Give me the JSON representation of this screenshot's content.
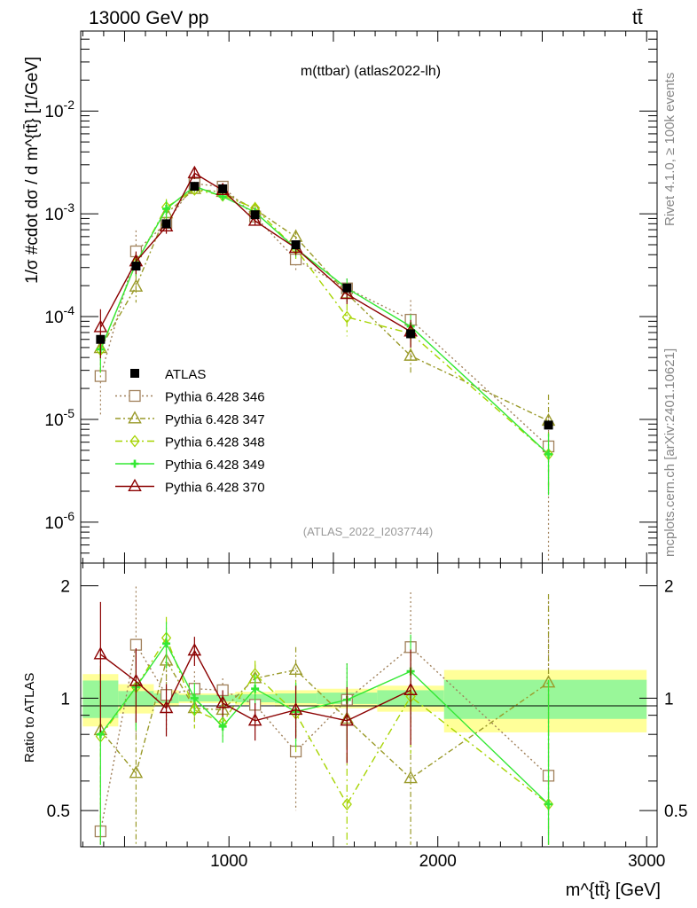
{
  "header": {
    "energy_label": "13000 GeV pp",
    "process_label": "tt̄",
    "side_rivet": "Rivet 4.1.0, ≥ 100k events",
    "side_mcplots": "mcplots.cern.ch [arXiv:2401.10621]"
  },
  "chart_data": {
    "type": "line",
    "title": "m(ttbar) (atlas2022-lh)",
    "analysis_id": "(ATLAS_2022_I2037744)",
    "xlabel": "m^{tt̄} [GeV]",
    "ylabel": "1/σ #cdot dσ / d m^{tt̄} [1/GeV]",
    "ratio_ylabel": "Ratio to ATLAS",
    "xlim": [
      290,
      3050
    ],
    "ylim": [
      4e-07,
      0.06
    ],
    "ratio_ylim": [
      0.4,
      2.3
    ],
    "x_ticks": [
      1000,
      2000,
      3000
    ],
    "y_ticks": [
      {
        "value": 1e-06,
        "label": "10^{-6}"
      },
      {
        "value": 1e-05,
        "label": "10^{-5}"
      },
      {
        "value": 0.0001,
        "label": "10^{-4}"
      },
      {
        "value": 0.001,
        "label": "10^{-3}"
      },
      {
        "value": 0.01,
        "label": "10^{-2}"
      }
    ],
    "ratio_ticks": [
      {
        "value": 0.5,
        "label": "0.5"
      },
      {
        "value": 1,
        "label": "1"
      },
      {
        "value": 2,
        "label": "2"
      }
    ],
    "data": {
      "name": "ATLAS",
      "x": [
        385,
        555,
        700,
        835,
        970,
        1125,
        1320,
        1565,
        1870,
        2530
      ],
      "x_edges": [
        [
          300,
          470
        ],
        [
          470,
          640
        ],
        [
          640,
          760
        ],
        [
          760,
          910
        ],
        [
          910,
          1030
        ],
        [
          1030,
          1220
        ],
        [
          1220,
          1420
        ],
        [
          1420,
          1710
        ],
        [
          1710,
          2030
        ],
        [
          2030,
          3000
        ]
      ],
      "y": [
        6e-05,
        0.00031,
        0.0008,
        0.00185,
        0.00175,
        0.00098,
        0.0005,
        0.00019,
        6.8e-05,
        8.8e-06
      ],
      "band_inner": [
        0.115,
        0.045,
        0.03,
        0.02,
        0.02,
        0.025,
        0.03,
        0.035,
        0.05,
        0.12
      ],
      "band_outer": [
        0.16,
        0.09,
        0.05,
        0.03,
        0.03,
        0.04,
        0.05,
        0.06,
        0.08,
        0.19
      ]
    },
    "series": [
      {
        "name": "Pythia 6.428 346",
        "color": "#a0805a",
        "dash": "2,3",
        "marker": "square",
        "ratio": [
          0.44,
          1.39,
          1.02,
          1.06,
          1.05,
          0.96,
          0.72,
          0.99,
          1.37,
          0.62
        ],
        "ratio_err": [
          0.6,
          0.6,
          0.2,
          0.12,
          0.08,
          0.12,
          0.22,
          0.25,
          0.55,
          1.2
        ]
      },
      {
        "name": "Pythia 6.428 347",
        "color": "#9a9a2a",
        "dash": "6,3,2,3",
        "marker": "triangle",
        "ratio": [
          0.82,
          0.63,
          1.26,
          0.94,
          0.93,
          1.13,
          1.19,
          0.88,
          0.61,
          1.1
        ],
        "ratio_err": [
          0.5,
          0.3,
          0.2,
          0.1,
          0.08,
          0.1,
          0.18,
          0.22,
          0.35,
          0.8
        ]
      },
      {
        "name": "Pythia 6.428 348",
        "color": "#a6d400",
        "dash": "8,4,2,4",
        "marker": "diamond",
        "ratio": [
          0.79,
          1.07,
          1.45,
          0.93,
          0.86,
          1.16,
          0.91,
          0.52,
          1.01,
          0.52
        ],
        "ratio_err": [
          0.4,
          0.25,
          0.2,
          0.1,
          0.08,
          0.1,
          0.2,
          0.35,
          0.3,
          0.6
        ]
      },
      {
        "name": "Pythia 6.428 349",
        "color": "#34e834",
        "dash": "",
        "marker": "cross",
        "ratio": [
          0.8,
          1.07,
          1.4,
          1.0,
          0.84,
          1.06,
          0.92,
          0.99,
          1.18,
          0.52
        ],
        "ratio_err": [
          0.4,
          0.25,
          0.2,
          0.1,
          0.08,
          0.1,
          0.18,
          0.25,
          0.3,
          0.6
        ]
      },
      {
        "name": "Pythia 6.428 370",
        "color": "#8b0000",
        "dash": "",
        "marker": "triangle",
        "ratio": [
          1.31,
          1.11,
          0.94,
          1.34,
          0.97,
          0.87,
          0.93,
          0.87,
          1.05,
          null
        ],
        "ratio_err": [
          0.5,
          0.25,
          0.15,
          0.12,
          0.08,
          0.1,
          0.15,
          0.2,
          0.3,
          0
        ]
      }
    ]
  }
}
